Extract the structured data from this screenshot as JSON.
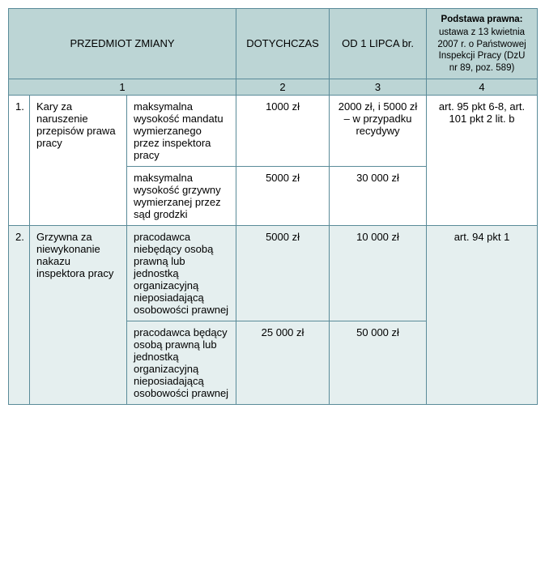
{
  "header": {
    "subject": "PRZEDMIOT ZMIANY",
    "before": "DOTYCHCZAS",
    "after": "OD 1 LIPCA br.",
    "legal_title": "Podstawa prawna:",
    "legal_detail": "ustawa z 13 kwietnia 2007 r. o Państwowej Inspekcji Pracy (DzU nr 89, poz. 589)"
  },
  "col_numbers": {
    "c1": "1",
    "c2": "2",
    "c3": "3",
    "c4": "4"
  },
  "rows": [
    {
      "idx": "1.",
      "subject": "Kary za naruszenie przepisów prawa pracy",
      "legal": "art. 95 pkt 6-8, art. 101 pkt 2 lit. b",
      "sub": [
        {
          "desc": "maksymalna wysokość mandatu wymierzanego przez inspektora pracy",
          "before": "1000 zł",
          "after": "2000 zł, i 5000 zł – w przypadku recydywy"
        },
        {
          "desc": "maksymalna wysokość grzywny wymierzanej przez sąd grodzki",
          "before": "5000 zł",
          "after": "30 000 zł"
        }
      ]
    },
    {
      "idx": "2.",
      "subject": "Grzywna za niewykonanie nakazu inspektora pracy",
      "legal": "art. 94 pkt 1",
      "sub": [
        {
          "desc": "pracodawca niebędący osobą prawną lub jednostką organizacyjną nieposiadającą osobowości prawnej",
          "before": "5000 zł",
          "after": "10 000 zł"
        },
        {
          "desc": "pracodawca będący osobą prawną lub jednostką organizacyjną nieposiadającą osobowości prawnej",
          "before": "25 000 zł",
          "after": "50 000 zł"
        }
      ]
    }
  ]
}
